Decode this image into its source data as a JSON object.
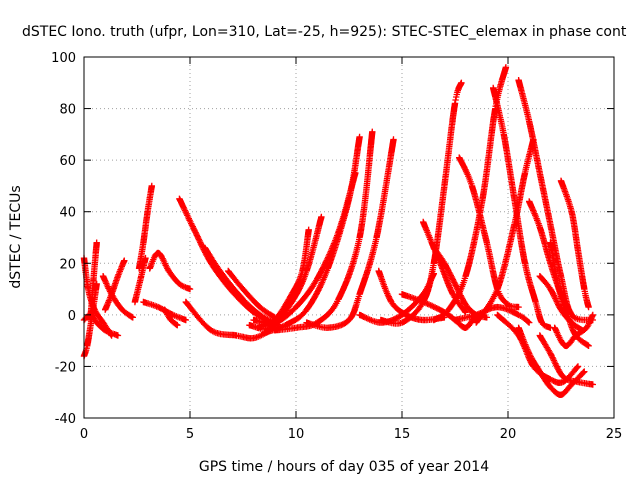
{
  "chart_data": {
    "type": "scatter",
    "title": "dSTEC Iono. truth (ufpr, Lon=310, Lat=-25, h=925): STEC-STEC_elemax in phase cont",
    "xlabel": "GPS time / hours of day 035 of year 2014",
    "ylabel": "dSTEC  / TECUs",
    "xlim": [
      0,
      25
    ],
    "ylim": [
      -40,
      100
    ],
    "x_ticks": [
      0,
      5,
      10,
      15,
      20,
      25
    ],
    "y_ticks": [
      -40,
      -20,
      0,
      20,
      40,
      60,
      80,
      100
    ],
    "x_tick_labels": [
      "0",
      "5",
      "10",
      "15",
      "20",
      "25"
    ],
    "y_tick_labels": [
      "-40",
      "-20",
      "0",
      "20",
      "40",
      "60",
      "80",
      "100"
    ],
    "grid": true,
    "marker": "plus",
    "color": "#ff0000",
    "series": [
      {
        "x": [
          0.0,
          0.2,
          0.5,
          0.9,
          1.3
        ],
        "y": [
          22,
          10,
          2,
          -3,
          -8
        ]
      },
      {
        "x": [
          0.0,
          0.15,
          0.35,
          0.6
        ],
        "y": [
          -16,
          -12,
          -2,
          12
        ]
      },
      {
        "x": [
          0.0,
          0.3,
          0.6,
          1.0,
          1.6
        ],
        "y": [
          -2,
          0,
          -3,
          -6,
          -8
        ]
      },
      {
        "x": [
          0.3,
          0.45,
          0.6
        ],
        "y": [
          -2,
          14,
          28
        ]
      },
      {
        "x": [
          0.9,
          1.3,
          1.8,
          2.3
        ],
        "y": [
          15,
          8,
          2,
          -1
        ]
      },
      {
        "x": [
          1.0,
          1.3,
          1.6,
          1.9
        ],
        "y": [
          2,
          8,
          15,
          21
        ]
      },
      {
        "x": [
          2.4,
          2.7,
          2.9
        ],
        "y": [
          5,
          15,
          22
        ]
      },
      {
        "x": [
          2.6,
          2.8,
          3.0,
          3.2
        ],
        "y": [
          18,
          28,
          40,
          50
        ]
      },
      {
        "x": [
          2.8,
          3.5,
          4.2,
          4.8
        ],
        "y": [
          5,
          3,
          0,
          -2
        ]
      },
      {
        "x": [
          3.1,
          3.5,
          4.0,
          4.5,
          5.0
        ],
        "y": [
          18,
          24,
          17,
          12,
          10
        ]
      },
      {
        "x": [
          3.8,
          4.1,
          4.4
        ],
        "y": [
          2,
          -2,
          -4
        ]
      },
      {
        "x": [
          4.5,
          5.2,
          6.0,
          7.0,
          8.0,
          8.8
        ],
        "y": [
          45,
          33,
          20,
          9,
          1,
          -3
        ]
      },
      {
        "x": [
          5.7,
          6.5,
          7.5,
          8.3,
          9.2
        ],
        "y": [
          26,
          16,
          6,
          0,
          -4
        ]
      },
      {
        "x": [
          6.8,
          7.5,
          8.3,
          9.0
        ],
        "y": [
          17,
          10,
          3,
          -1
        ]
      },
      {
        "x": [
          4.8,
          6.0,
          7.2,
          8.0,
          8.8
        ],
        "y": [
          5,
          -6,
          -8,
          -9,
          -6
        ]
      },
      {
        "x": [
          8.5,
          9.5,
          10.5,
          11.5,
          12.5,
          13.0
        ],
        "y": [
          -7,
          -4,
          2,
          18,
          45,
          69
        ]
      },
      {
        "x": [
          8.0,
          9.0,
          10.0,
          11.0,
          12.0,
          12.8
        ],
        "y": [
          -2,
          -3,
          3,
          14,
          32,
          55
        ]
      },
      {
        "x": [
          7.8,
          8.8,
          9.8,
          10.5,
          11.2
        ],
        "y": [
          -4,
          -5,
          5,
          17,
          38
        ]
      },
      {
        "x": [
          8.2,
          9.0,
          9.8,
          10.3,
          10.6
        ],
        "y": [
          -5,
          -2,
          8,
          17,
          33
        ]
      },
      {
        "x": [
          9.0,
          10.0,
          11.0,
          12.0,
          13.0,
          13.6
        ],
        "y": [
          -6,
          -5,
          -3,
          6,
          30,
          71
        ]
      },
      {
        "x": [
          10.5,
          11.5,
          12.5,
          13.0,
          13.8,
          14.6
        ],
        "y": [
          -3,
          -5,
          -2,
          8,
          30,
          68
        ]
      },
      {
        "x": [
          13.0,
          14.0,
          15.0,
          16.0,
          16.5
        ],
        "y": [
          0,
          -3,
          0,
          8,
          16
        ]
      },
      {
        "x": [
          13.9,
          14.5,
          15.2,
          16.0,
          17.0
        ],
        "y": [
          17,
          5,
          0,
          -2,
          -1
        ]
      },
      {
        "x": [
          14.0,
          15.0,
          16.0,
          16.5,
          17.0,
          17.5,
          17.8
        ],
        "y": [
          -2,
          -3,
          5,
          20,
          50,
          82,
          90
        ]
      },
      {
        "x": [
          15.0,
          16.0,
          17.0,
          17.5,
          18.0,
          18.4
        ],
        "y": [
          8,
          5,
          1,
          -2,
          -5,
          -1
        ]
      },
      {
        "x": [
          16.0,
          16.4,
          16.9,
          17.4,
          18.0
        ],
        "y": [
          36,
          28,
          18,
          8,
          1
        ]
      },
      {
        "x": [
          16.5,
          17.0,
          17.5,
          18.0,
          18.5,
          19.0
        ],
        "y": [
          26,
          20,
          12,
          4,
          0,
          -1
        ]
      },
      {
        "x": [
          17.7,
          18.3,
          19.0,
          19.5,
          20.0,
          20.5
        ],
        "y": [
          61,
          50,
          28,
          10,
          4,
          3
        ]
      },
      {
        "x": [
          16.5,
          17.2,
          18.0,
          18.8,
          19.4,
          19.9
        ],
        "y": [
          -2,
          2,
          15,
          45,
          80,
          96
        ]
      },
      {
        "x": [
          17.5,
          18.5,
          19.5,
          20.5,
          21.0
        ],
        "y": [
          -2,
          0,
          3,
          0,
          -3
        ]
      },
      {
        "x": [
          19.3,
          19.8,
          20.3,
          20.8,
          21.3,
          21.6,
          22.0
        ],
        "y": [
          88,
          70,
          45,
          20,
          5,
          -3,
          -5
        ]
      },
      {
        "x": [
          18.5,
          19.5,
          20.3,
          20.8,
          21.2
        ],
        "y": [
          -3,
          10,
          35,
          55,
          68
        ]
      },
      {
        "x": [
          20.5,
          21.0,
          21.5,
          22.0,
          22.5,
          23.0,
          24.0
        ],
        "y": [
          91,
          75,
          55,
          35,
          15,
          0,
          -2
        ]
      },
      {
        "x": [
          20.5,
          21.0,
          21.5,
          22.0,
          22.5,
          23.0,
          23.6
        ],
        "y": [
          -5,
          -15,
          -22,
          -28,
          -31,
          -27,
          -22
        ]
      },
      {
        "x": [
          19.5,
          20.5,
          21.2,
          22.0,
          22.6,
          23.3
        ],
        "y": [
          0,
          -8,
          -20,
          -25,
          -26,
          -20
        ]
      },
      {
        "x": [
          21.5,
          22.0,
          22.6,
          23.3,
          24.0
        ],
        "y": [
          -8,
          -15,
          -24,
          -26,
          -27
        ]
      },
      {
        "x": [
          22.0,
          22.4,
          22.8,
          23.2,
          23.8
        ],
        "y": [
          28,
          10,
          0,
          -8,
          -12
        ]
      },
      {
        "x": [
          22.2,
          22.7,
          23.2,
          23.7,
          24.0
        ],
        "y": [
          -5,
          -12,
          -8,
          -5,
          0
        ]
      },
      {
        "x": [
          22.5,
          23.0,
          23.3,
          23.6,
          23.8
        ],
        "y": [
          52,
          40,
          25,
          10,
          3
        ]
      },
      {
        "x": [
          21.5,
          22.0,
          22.5,
          23.0,
          23.5
        ],
        "y": [
          15,
          10,
          2,
          -3,
          -6
        ]
      },
      {
        "x": [
          21.0,
          21.5,
          22.0,
          22.5,
          23.0
        ],
        "y": [
          44,
          34,
          20,
          8,
          0
        ]
      }
    ]
  }
}
